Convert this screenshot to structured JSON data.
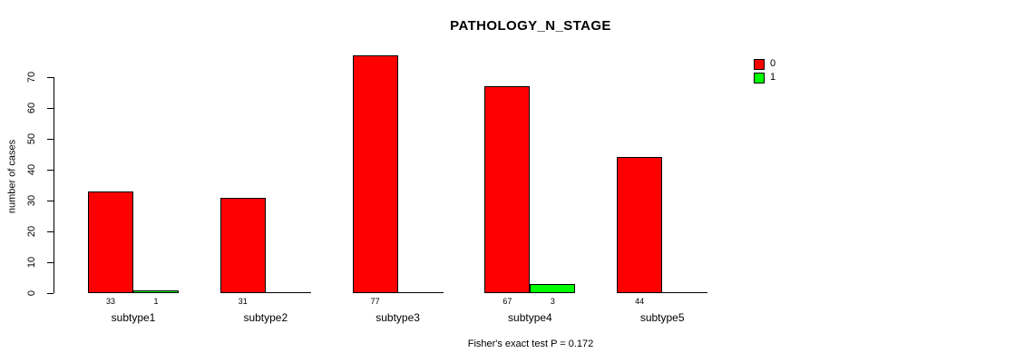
{
  "title": "PATHOLOGY_N_STAGE",
  "annotation": "Fisher's exact test P = 0.172",
  "y_axis": {
    "label": "number of cases"
  },
  "legend": {
    "items": [
      {
        "label": "0",
        "color": "#FF0000"
      },
      {
        "label": "1",
        "color": "#00FF00"
      }
    ]
  },
  "chart_data": {
    "type": "bar",
    "title": "PATHOLOGY_N_STAGE",
    "categories": [
      "subtype1",
      "subtype2",
      "subtype3",
      "subtype4",
      "subtype5"
    ],
    "series": [
      {
        "name": "0",
        "color": "#FF0000",
        "values": [
          33,
          31,
          77,
          67,
          44
        ]
      },
      {
        "name": "1",
        "color": "#00FF00",
        "values": [
          1,
          0,
          0,
          3,
          0
        ]
      }
    ],
    "bar_value_labels": [
      [
        33,
        1
      ],
      [
        31,
        null
      ],
      [
        77,
        null
      ],
      [
        67,
        3
      ],
      [
        44,
        null
      ]
    ],
    "xlabel": "",
    "ylabel": "number of cases",
    "ylim": [
      0,
      70
    ],
    "yticks": [
      0,
      10,
      20,
      30,
      40,
      50,
      60,
      70
    ],
    "grid": false,
    "legend_position": "top-right",
    "annotation": "Fisher's exact test P = 0.172"
  }
}
